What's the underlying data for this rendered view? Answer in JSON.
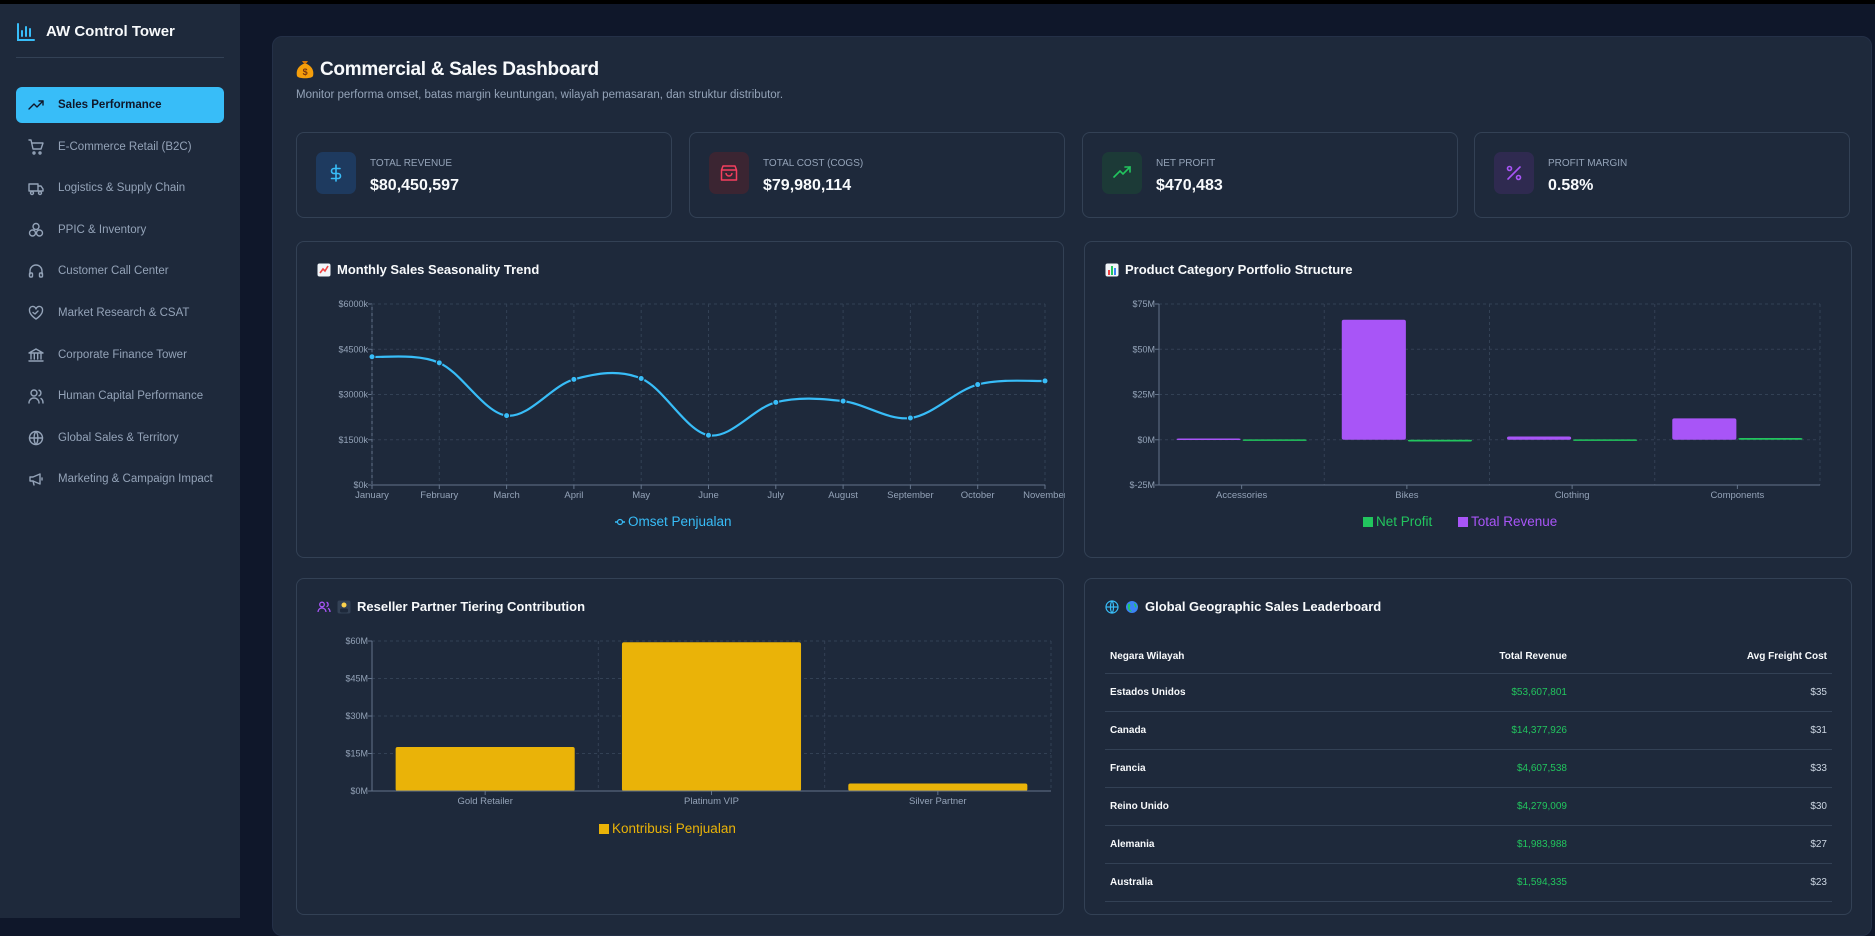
{
  "app": {
    "title": "AW Control Tower"
  },
  "sidebar": {
    "items": [
      {
        "label": "Sales Performance",
        "icon": "trending-up-icon",
        "active": true
      },
      {
        "label": "E-Commerce Retail (B2C)",
        "icon": "cart-icon"
      },
      {
        "label": "Logistics & Supply Chain",
        "icon": "truck-icon"
      },
      {
        "label": "PPIC & Inventory",
        "icon": "boxes-icon"
      },
      {
        "label": "Customer Call Center",
        "icon": "headphones-icon"
      },
      {
        "label": "Market Research & CSAT",
        "icon": "heart-handshake-icon"
      },
      {
        "label": "Corporate Finance Tower",
        "icon": "bank-icon"
      },
      {
        "label": "Human Capital Performance",
        "icon": "users-icon"
      },
      {
        "label": "Global Sales & Territory",
        "icon": "globe-icon"
      },
      {
        "label": "Marketing & Campaign Impact",
        "icon": "megaphone-icon"
      }
    ]
  },
  "header": {
    "title": "Commercial & Sales Dashboard",
    "subtitle": "Monitor performa omset, batas margin keuntungan, wilayah pemasaran, dan struktur distributor."
  },
  "kpis": [
    {
      "label": "Total Revenue",
      "value": "$80,450,597",
      "icon": "dollar-icon",
      "color": "#38bdf8"
    },
    {
      "label": "Total Cost (COGS)",
      "value": "$79,980,114",
      "icon": "shopping-bag-icon",
      "color": "#f43f5e"
    },
    {
      "label": "Net Profit",
      "value": "$470,483",
      "icon": "trending-up-icon",
      "color": "#22c55e"
    },
    {
      "label": "Profit Margin",
      "value": "0.58%",
      "icon": "percent-icon",
      "color": "#a855f7"
    }
  ],
  "panels": {
    "monthly": {
      "title": "Monthly Sales Seasonality Trend"
    },
    "category": {
      "title": "Product Category Portfolio Structure"
    },
    "reseller": {
      "title": "Reseller Partner Tiering Contribution"
    },
    "geo": {
      "title": "Global Geographic Sales Leaderboard"
    }
  },
  "chart_data": [
    {
      "type": "line",
      "categories": [
        "January",
        "February",
        "March",
        "April",
        "May",
        "June",
        "July",
        "August",
        "September",
        "October",
        "November"
      ],
      "series": [
        {
          "name": "Omset Penjualan",
          "values": [
            4250,
            4050,
            2300,
            3500,
            3530,
            1650,
            2740,
            2780,
            2220,
            3330,
            3450
          ],
          "color": "#38bdf8"
        }
      ],
      "ylim": [
        0,
        6000
      ],
      "yticks": [
        "$0k",
        "$1500k",
        "$3000k",
        "$4500k",
        "$6000k"
      ],
      "grid": true,
      "legend": "bottom"
    },
    {
      "type": "bar",
      "categories": [
        "Accessories",
        "Bikes",
        "Clothing",
        "Components"
      ],
      "series": [
        {
          "name": "Net Profit",
          "values": [
            0.2,
            -1.0,
            0.2,
            1.0
          ],
          "color": "#22c55e"
        },
        {
          "name": "Total Revenue",
          "values": [
            0.7,
            66.3,
            1.8,
            11.8
          ],
          "color": "#a855f7"
        }
      ],
      "ylim": [
        -25,
        75
      ],
      "yticks": [
        "$-25M",
        "$0M",
        "$25M",
        "$50M",
        "$75M"
      ],
      "grid": true,
      "legend": "bottom"
    },
    {
      "type": "bar",
      "categories": [
        "Gold Retailer",
        "Platinum VIP",
        "Silver Partner"
      ],
      "series": [
        {
          "name": "Kontribusi Penjualan",
          "values": [
            17.6,
            59.5,
            3.0
          ],
          "color": "#eab308"
        }
      ],
      "ylim": [
        0,
        60
      ],
      "yticks": [
        "$0M",
        "$15M",
        "$30M",
        "$45M",
        "$60M"
      ],
      "grid": true,
      "legend": "bottom"
    },
    {
      "type": "table",
      "columns": [
        "Negara Wilayah",
        "Total Revenue",
        "Avg Freight Cost"
      ],
      "rows": [
        [
          "Estados Unidos",
          "$53,607,801",
          "$35"
        ],
        [
          "Canada",
          "$14,377,926",
          "$31"
        ],
        [
          "Francia",
          "$4,607,538",
          "$33"
        ],
        [
          "Reino Unido",
          "$4,279,009",
          "$30"
        ],
        [
          "Alemania",
          "$1,983,988",
          "$27"
        ],
        [
          "Australia",
          "$1,594,335",
          "$23"
        ]
      ]
    }
  ]
}
